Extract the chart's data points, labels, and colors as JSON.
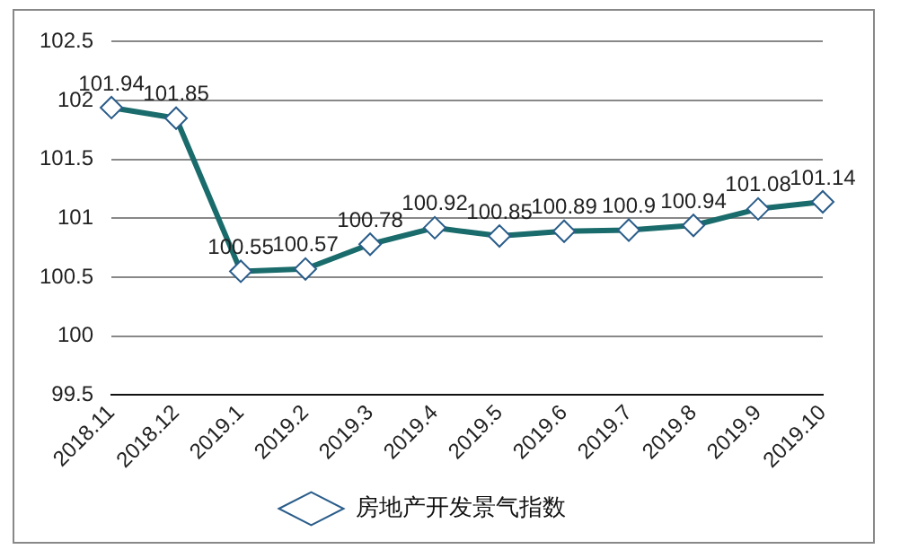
{
  "chart_data": {
    "type": "line",
    "categories": [
      "2018.11",
      "2018.12",
      "2019.1",
      "2019.2",
      "2019.3",
      "2019.4",
      "2019.5",
      "2019.6",
      "2019.7",
      "2019.8",
      "2019.9",
      "2019.10"
    ],
    "series": [
      {
        "name": "房地产开发景气指数",
        "color": "#1a6b6b",
        "values": [
          101.94,
          101.85,
          100.55,
          100.57,
          100.78,
          100.92,
          100.85,
          100.89,
          100.9,
          100.94,
          101.08,
          101.14
        ]
      }
    ],
    "ylim": [
      99.5,
      102.5
    ],
    "yticks": [
      99.5,
      100,
      100.5,
      101,
      101.5,
      102,
      102.5
    ],
    "grid": "y",
    "legend": "bottom",
    "marker": "diamond",
    "line_style": "solid",
    "data_labels": true
  }
}
